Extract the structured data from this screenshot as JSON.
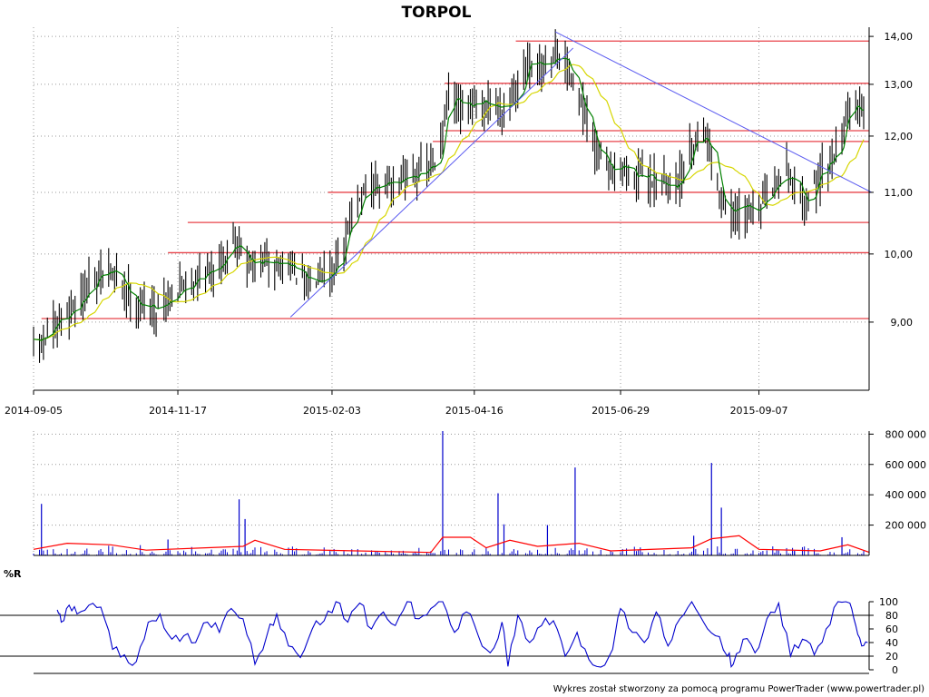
{
  "title": "TORPOL",
  "footer": "Wykres został stworzony za pomocą programu PowerTrader (www.powertrader.pl)",
  "colors": {
    "price_bars": "#000000",
    "sma_fast": "#008000",
    "sma_slow": "#d6d600",
    "levels": "#e8434a",
    "trendlines": "#5a5af0",
    "volume": "#0000cc",
    "volume_avg": "#ff0000",
    "williams": "#0000cc",
    "grid": "#9a9a9a"
  },
  "chart_data": [
    {
      "type": "ohlc",
      "name": "price",
      "title": "TORPOL",
      "x_range": [
        "2014-09-05",
        "2015-10-30"
      ],
      "x_ticks": [
        "2014-09-05",
        "2014-11-17",
        "2015-02-03",
        "2015-04-16",
        "2015-06-29",
        "2015-09-07"
      ],
      "y_ticks": [
        "9,00",
        "10,00",
        "11,00",
        "12,00",
        "13,00",
        "14,00"
      ],
      "ylim": [
        8.1,
        14.2
      ],
      "y_scale": "log",
      "grid": true,
      "close_path": [
        [
          "2014-09-05",
          8.65
        ],
        [
          "2014-09-15",
          8.9
        ],
        [
          "2014-09-26",
          9.25
        ],
        [
          "2014-10-06",
          9.6
        ],
        [
          "2014-10-14",
          9.75
        ],
        [
          "2014-10-20",
          9.55
        ],
        [
          "2014-10-28",
          9.25
        ],
        [
          "2014-11-05",
          9.2
        ],
        [
          "2014-11-17",
          9.45
        ],
        [
          "2014-11-27",
          9.65
        ],
        [
          "2014-12-05",
          9.75
        ],
        [
          "2014-12-12",
          10.05
        ],
        [
          "2014-12-15",
          10.3
        ],
        [
          "2014-12-22",
          9.85
        ],
        [
          "2015-01-05",
          9.85
        ],
        [
          "2015-01-13",
          9.85
        ],
        [
          "2015-01-20",
          9.55
        ],
        [
          "2015-01-27",
          9.7
        ],
        [
          "2015-02-03",
          9.75
        ],
        [
          "2015-02-09",
          10.05
        ],
        [
          "2015-02-13",
          10.7
        ],
        [
          "2015-02-23",
          11.05
        ],
        [
          "2015-03-05",
          11.15
        ],
        [
          "2015-03-16",
          11.35
        ],
        [
          "2015-03-26",
          11.4
        ],
        [
          "2015-03-31",
          12.0
        ],
        [
          "2015-04-02",
          12.75
        ],
        [
          "2015-04-09",
          12.5
        ],
        [
          "2015-04-16",
          12.55
        ],
        [
          "2015-04-30",
          12.6
        ],
        [
          "2015-05-06",
          12.75
        ],
        [
          "2015-05-13",
          13.35
        ],
        [
          "2015-05-20",
          13.3
        ],
        [
          "2015-05-27",
          13.55
        ],
        [
          "2015-06-01",
          13.45
        ],
        [
          "2015-06-05",
          13.15
        ],
        [
          "2015-06-10",
          12.45
        ],
        [
          "2015-06-16",
          11.7
        ],
        [
          "2015-06-24",
          11.45
        ],
        [
          "2015-06-29",
          11.55
        ],
        [
          "2015-07-06",
          11.25
        ],
        [
          "2015-07-14",
          11.3
        ],
        [
          "2015-07-22",
          11.1
        ],
        [
          "2015-07-29",
          11.2
        ],
        [
          "2015-08-04",
          11.9
        ],
        [
          "2015-08-10",
          12.1
        ],
        [
          "2015-08-14",
          11.7
        ],
        [
          "2015-08-19",
          10.85
        ],
        [
          "2015-08-24",
          10.6
        ],
        [
          "2015-08-31",
          10.75
        ],
        [
          "2015-09-07",
          10.7
        ],
        [
          "2015-09-14",
          11.05
        ],
        [
          "2015-09-21",
          11.4
        ],
        [
          "2015-09-28",
          10.95
        ],
        [
          "2015-10-02",
          10.9
        ],
        [
          "2015-10-08",
          11.3
        ],
        [
          "2015-10-14",
          11.6
        ],
        [
          "2015-10-19",
          12.0
        ],
        [
          "2015-10-22",
          12.6
        ],
        [
          "2015-10-26",
          12.6
        ],
        [
          "2015-10-30",
          12.4
        ]
      ],
      "horizontal_levels": [
        {
          "value": 9.05,
          "from": "2014-09-09"
        },
        {
          "value": 10.02,
          "from": "2014-11-12"
        },
        {
          "value": 10.5,
          "from": "2014-11-22"
        },
        {
          "value": 11.0,
          "from": "2015-02-01"
        },
        {
          "value": 11.9,
          "from": "2015-03-26"
        },
        {
          "value": 12.1,
          "from": "2015-04-01"
        },
        {
          "value": 13.02,
          "from": "2015-04-01"
        },
        {
          "value": 13.9,
          "from": "2015-05-07"
        }
      ],
      "trendlines": [
        {
          "from": [
            "2015-01-13",
            9.07
          ],
          "to": [
            "2015-06-05",
            13.75
          ]
        },
        {
          "from": [
            "2015-05-27",
            14.1
          ],
          "to": [
            "2015-11-03",
            11.0
          ]
        }
      ]
    },
    {
      "type": "bar",
      "name": "volume",
      "y_ticks": [
        "200 000",
        "400 000",
        "600 000",
        "800 000"
      ],
      "ylim": [
        0,
        820000
      ],
      "spikes": [
        [
          "2014-09-09",
          340000
        ],
        [
          "2014-11-12",
          105000
        ],
        [
          "2014-12-18",
          370000
        ],
        [
          "2014-12-21",
          240000
        ],
        [
          "2015-03-31",
          820000
        ],
        [
          "2015-04-28",
          410000
        ],
        [
          "2015-05-01",
          205000
        ],
        [
          "2015-05-23",
          200000
        ],
        [
          "2015-06-06",
          580000
        ],
        [
          "2015-08-05",
          130000
        ],
        [
          "2015-08-14",
          610000
        ],
        [
          "2015-08-19",
          315000
        ],
        [
          "2015-09-25",
          30000
        ],
        [
          "2015-10-19",
          120000
        ]
      ],
      "moving_average": [
        [
          "2014-09-05",
          40000
        ],
        [
          "2014-09-22",
          80000
        ],
        [
          "2014-10-14",
          70000
        ],
        [
          "2014-11-01",
          35000
        ],
        [
          "2014-12-20",
          60000
        ],
        [
          "2014-12-26",
          100000
        ],
        [
          "2015-01-10",
          40000
        ],
        [
          "2015-03-25",
          20000
        ],
        [
          "2015-03-31",
          120000
        ],
        [
          "2015-04-14",
          120000
        ],
        [
          "2015-04-22",
          50000
        ],
        [
          "2015-05-04",
          100000
        ],
        [
          "2015-05-18",
          60000
        ],
        [
          "2015-06-08",
          80000
        ],
        [
          "2015-06-24",
          30000
        ],
        [
          "2015-08-04",
          50000
        ],
        [
          "2015-08-14",
          110000
        ],
        [
          "2015-08-28",
          130000
        ],
        [
          "2015-09-07",
          40000
        ],
        [
          "2015-10-08",
          30000
        ],
        [
          "2015-10-22",
          70000
        ],
        [
          "2015-11-02",
          20000
        ]
      ]
    },
    {
      "type": "line",
      "name": "%R",
      "y_ticks": [
        "0",
        "20",
        "40",
        "60",
        "80",
        "100"
      ],
      "ylim": [
        0,
        100
      ],
      "reference_lines": [
        20,
        80
      ],
      "points": [
        [
          "2014-09-17",
          88
        ],
        [
          "2014-09-19",
          70
        ],
        [
          "2014-09-23",
          95
        ],
        [
          "2014-09-27",
          82
        ],
        [
          "2014-10-03",
          95
        ],
        [
          "2014-10-09",
          92
        ],
        [
          "2014-10-15",
          30
        ],
        [
          "2014-10-21",
          22
        ],
        [
          "2014-10-27",
          12
        ],
        [
          "2014-11-02",
          70
        ],
        [
          "2014-11-08",
          82
        ],
        [
          "2014-11-14",
          45
        ],
        [
          "2014-11-20",
          50
        ],
        [
          "2014-11-26",
          40
        ],
        [
          "2014-12-02",
          70
        ],
        [
          "2014-12-08",
          55
        ],
        [
          "2014-12-14",
          90
        ],
        [
          "2014-12-20",
          75
        ],
        [
          "2014-12-26",
          8
        ],
        [
          "2015-01-01",
          50
        ],
        [
          "2015-01-06",
          82
        ],
        [
          "2015-01-12",
          35
        ],
        [
          "2015-01-18",
          18
        ],
        [
          "2015-01-24",
          60
        ],
        [
          "2015-01-30",
          72
        ],
        [
          "2015-02-05",
          100
        ],
        [
          "2015-02-11",
          70
        ],
        [
          "2015-02-17",
          98
        ],
        [
          "2015-02-23",
          60
        ],
        [
          "2015-03-01",
          85
        ],
        [
          "2015-03-07",
          65
        ],
        [
          "2015-03-13",
          100
        ],
        [
          "2015-03-19",
          75
        ],
        [
          "2015-03-25",
          90
        ],
        [
          "2015-03-31",
          100
        ],
        [
          "2015-04-06",
          55
        ],
        [
          "2015-04-12",
          85
        ],
        [
          "2015-04-18",
          50
        ],
        [
          "2015-04-24",
          25
        ],
        [
          "2015-04-30",
          70
        ],
        [
          "2015-05-03",
          5
        ],
        [
          "2015-05-08",
          80
        ],
        [
          "2015-05-14",
          40
        ],
        [
          "2015-05-20",
          65
        ],
        [
          "2015-05-26",
          72
        ],
        [
          "2015-06-01",
          20
        ],
        [
          "2015-06-07",
          55
        ],
        [
          "2015-06-13",
          15
        ],
        [
          "2015-06-19",
          4
        ],
        [
          "2015-06-25",
          30
        ],
        [
          "2015-06-29",
          90
        ],
        [
          "2015-07-05",
          55
        ],
        [
          "2015-07-11",
          40
        ],
        [
          "2015-07-17",
          85
        ],
        [
          "2015-07-23",
          35
        ],
        [
          "2015-07-29",
          75
        ],
        [
          "2015-08-04",
          100
        ],
        [
          "2015-08-10",
          70
        ],
        [
          "2015-08-16",
          50
        ],
        [
          "2015-08-22",
          20
        ],
        [
          "2015-08-25",
          8
        ],
        [
          "2015-08-30",
          45
        ],
        [
          "2015-09-05",
          25
        ],
        [
          "2015-09-11",
          75
        ],
        [
          "2015-09-17",
          98
        ],
        [
          "2015-09-23",
          20
        ],
        [
          "2015-09-29",
          45
        ],
        [
          "2015-10-05",
          22
        ],
        [
          "2015-10-11",
          60
        ],
        [
          "2015-10-17",
          100
        ],
        [
          "2015-10-23",
          98
        ],
        [
          "2015-10-26",
          65
        ],
        [
          "2015-10-29",
          35
        ],
        [
          "2015-11-01",
          40
        ]
      ]
    }
  ]
}
